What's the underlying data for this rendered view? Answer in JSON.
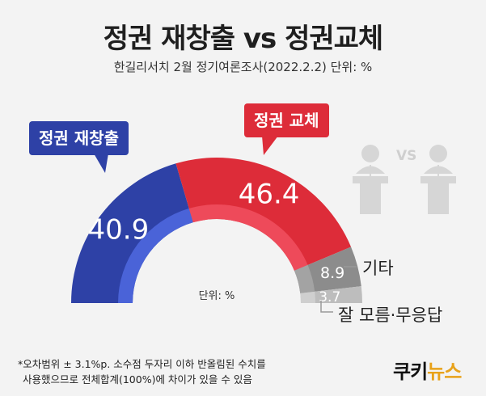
{
  "title": "정권 재창출 vs 정권교체",
  "subtitle": "한길리서치 2월 정기여론조사(2022.2.2) 단위: %",
  "center_unit": "단위: %",
  "legend_bubbles": {
    "blue": "정권 재창출",
    "red": "정권 교체"
  },
  "side_labels": {
    "other": "기타",
    "unknown": "잘 모름·무응답"
  },
  "footnote": {
    "line1": "*오차범위 ± 3.1%p. 소수점 두자리 이하 반올림된 수치를",
    "line2": "사용했으므로 전체합계(100%)에 차이가 있을 수 있음"
  },
  "logo": {
    "part1": "쿠키",
    "part2": "뉴스"
  },
  "colors": {
    "blue": "#2e41a6",
    "red": "#dd2c39",
    "gray_dark": "#8c8c8c",
    "gray_light": "#bdbdbd"
  },
  "icons": [
    "podium-speaker-icon",
    "vs-text-icon",
    "podium-speaker-icon"
  ],
  "vs_text": "VS",
  "chart_data": {
    "type": "pie",
    "style": "half-donut",
    "categories": [
      "정권 재창출",
      "정권 교체",
      "기타",
      "잘 모름·무응답"
    ],
    "values": [
      40.9,
      46.4,
      8.9,
      3.7
    ],
    "labels": [
      "40.9",
      "46.4",
      "8.9",
      "3.7"
    ],
    "colors": [
      "#2e41a6",
      "#dd2c39",
      "#8c8c8c",
      "#bdbdbd"
    ]
  }
}
